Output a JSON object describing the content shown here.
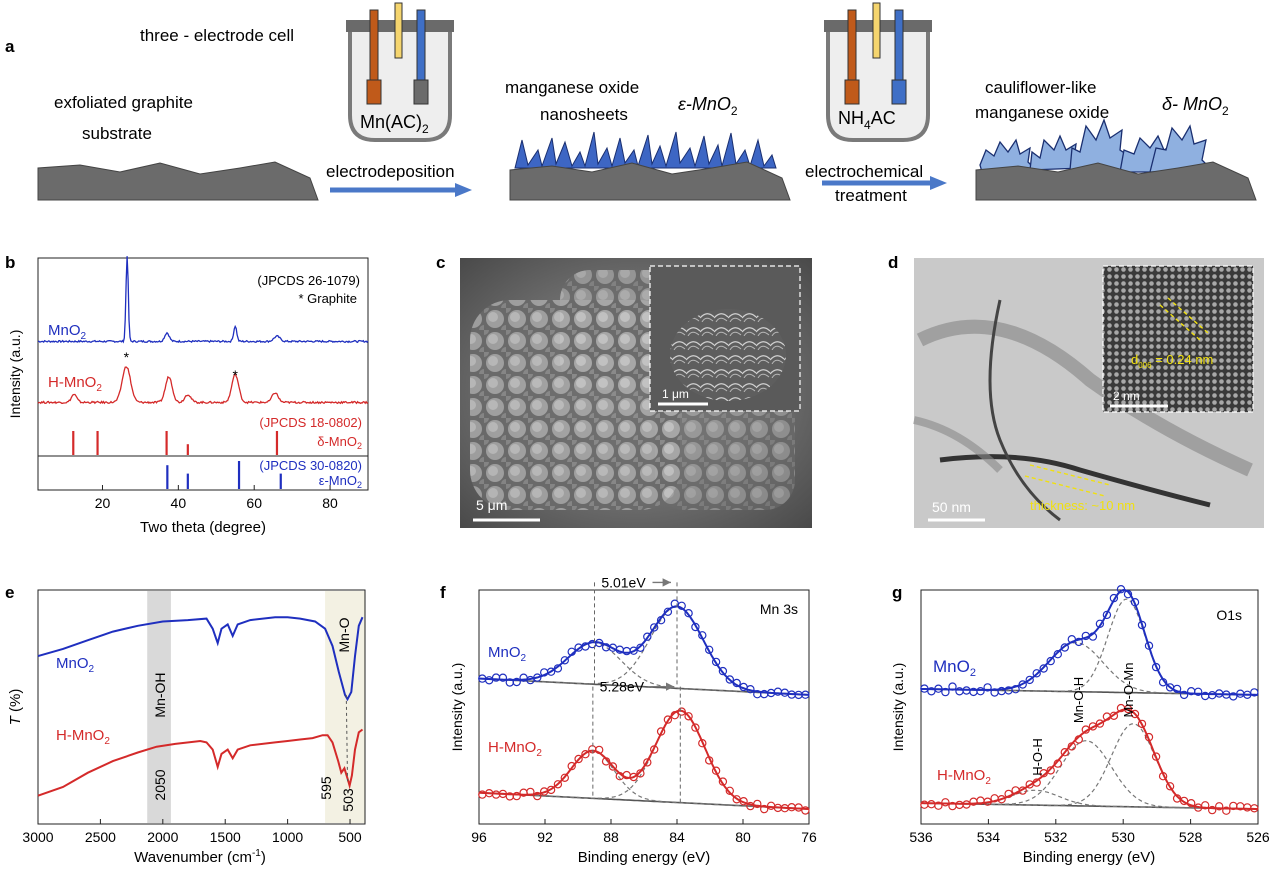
{
  "panel_labels": {
    "a": "a",
    "b": "b",
    "c": "c",
    "d": "d",
    "e": "e",
    "f": "f",
    "g": "g"
  },
  "colors": {
    "blue": "#1f2fbf",
    "red": "#d42a2a",
    "gray_dark": "#555555",
    "arrow_blue": "#4a78c8",
    "substrate": "#6b6b6b"
  },
  "schematic": {
    "cell_label": "three - electrode cell",
    "electrolyte_1": "Mn(AC)",
    "electrolyte_1_sub": "2",
    "electrolyte_2_pre": "NH",
    "electrolyte_2_sub": "4",
    "electrolyte_2_post": "AC",
    "substrate_line1": "exfoliated graphite",
    "substrate_line2": "substrate",
    "step1": "electrodeposition",
    "nanosheets_line1": "manganese oxide",
    "nanosheets_line2": "nanosheets",
    "phase_eps": "ε-MnO",
    "phase_sub": "2",
    "step2_line1": "electrochemical",
    "step2_line2": "treatment",
    "cauli_line1": "cauliflower-like",
    "cauli_line2": "manganese oxide",
    "phase_delta": "δ- MnO"
  },
  "chart_data": [
    {
      "panel": "b",
      "type": "line",
      "title": "",
      "xlabel": "Two theta  (degree)",
      "ylabel": "Intensity (a.u.)",
      "xlim": [
        3,
        90
      ],
      "xticks": [
        20,
        40,
        60,
        80
      ],
      "annotation_top_1": "(JPCDS 26-1079)",
      "annotation_top_2": "* Graphite",
      "series": [
        {
          "name": "MnO2",
          "label": "MnO",
          "label_sub": "2",
          "color": "#1f2fbf",
          "baseline": 0.1,
          "noise": 0.01,
          "peaks": [
            [
              26.5,
              1.0,
              0.3
            ],
            [
              37.0,
              0.1,
              0.6
            ],
            [
              55.0,
              0.18,
              0.4
            ],
            [
              66.0,
              0.06,
              0.8
            ]
          ]
        },
        {
          "name": "H-MnO2",
          "label": "H-MnO",
          "label_sub": "2",
          "color": "#d42a2a",
          "baseline": 0.12,
          "noise": 0.012,
          "peaks": [
            [
              12.5,
              0.1,
              0.7
            ],
            [
              26.3,
              0.45,
              1.1
            ],
            [
              37.5,
              0.32,
              0.9
            ],
            [
              42.5,
              0.1,
              0.8
            ],
            [
              55.0,
              0.35,
              0.9
            ],
            [
              65.5,
              0.12,
              0.8
            ]
          ]
        }
      ],
      "star_positions": [
        26.3,
        55.0
      ],
      "ref_delta": {
        "label": "(JPCDS 18-0802)",
        "phase": "δ-MnO",
        "phase_sub": "2",
        "color": "#d42a2a",
        "lines": [
          [
            12.3,
            1.0
          ],
          [
            18.7,
            1.0
          ],
          [
            36.9,
            1.0
          ],
          [
            42.5,
            0.45
          ],
          [
            66.0,
            1.0
          ]
        ]
      },
      "ref_eps": {
        "label": "(JPCDS 30-0820)",
        "phase": "ε-MnO",
        "phase_sub": "2",
        "color": "#1f2fbf",
        "lines": [
          [
            37.1,
            0.85
          ],
          [
            42.5,
            0.55
          ],
          [
            56.0,
            1.0
          ],
          [
            67.0,
            0.55
          ]
        ]
      }
    },
    {
      "panel": "e",
      "type": "line",
      "xlabel": "Wavenumber (cm",
      "xlabel_sup": "-1",
      "xlabel_post": ")",
      "ylabel": "T",
      "ylabel_post": " (%)",
      "xlim": [
        3000,
        380
      ],
      "xticks": [
        3000,
        2500,
        2000,
        1500,
        1000,
        500
      ],
      "band_mnoh": {
        "from": 2125,
        "to": 1935,
        "label": "Mn-OH",
        "value_label": "2050"
      },
      "band_mno": {
        "from": 700,
        "to": 380,
        "label": "Mn-O"
      },
      "marker_595": "595",
      "marker_503": "503",
      "series": [
        {
          "name": "MnO2",
          "label": "MnO",
          "label_sub": "2",
          "color": "#1f2fbf",
          "points": [
            [
              3000,
              0.55
            ],
            [
              2800,
              0.6
            ],
            [
              2600,
              0.66
            ],
            [
              2400,
              0.72
            ],
            [
              2200,
              0.76
            ],
            [
              2000,
              0.79
            ],
            [
              1800,
              0.8
            ],
            [
              1650,
              0.81
            ],
            [
              1600,
              0.74
            ],
            [
              1560,
              0.64
            ],
            [
              1530,
              0.74
            ],
            [
              1480,
              0.77
            ],
            [
              1440,
              0.69
            ],
            [
              1400,
              0.77
            ],
            [
              1300,
              0.8
            ],
            [
              1100,
              0.82
            ],
            [
              1000,
              0.82
            ],
            [
              900,
              0.81
            ],
            [
              780,
              0.79
            ],
            [
              700,
              0.74
            ],
            [
              640,
              0.62
            ],
            [
              590,
              0.44
            ],
            [
              540,
              0.28
            ],
            [
              520,
              0.25
            ],
            [
              490,
              0.3
            ],
            [
              460,
              0.55
            ],
            [
              430,
              0.76
            ],
            [
              400,
              0.82
            ]
          ]
        },
        {
          "name": "H-MnO2",
          "label": "H-MnO",
          "label_sub": "2",
          "color": "#d42a2a",
          "points": [
            [
              3000,
              -0.42
            ],
            [
              2800,
              -0.36
            ],
            [
              2600,
              -0.26
            ],
            [
              2400,
              -0.18
            ],
            [
              2200,
              -0.12
            ],
            [
              2050,
              -0.08
            ],
            [
              1900,
              -0.06
            ],
            [
              1700,
              -0.04
            ],
            [
              1650,
              -0.05
            ],
            [
              1600,
              -0.1
            ],
            [
              1560,
              -0.22
            ],
            [
              1530,
              -0.13
            ],
            [
              1480,
              -0.1
            ],
            [
              1440,
              -0.16
            ],
            [
              1400,
              -0.1
            ],
            [
              1300,
              -0.07
            ],
            [
              1100,
              -0.05
            ],
            [
              1000,
              -0.04
            ],
            [
              900,
              -0.03
            ],
            [
              800,
              -0.02
            ],
            [
              720,
              0.0
            ],
            [
              680,
              0.0
            ],
            [
              640,
              -0.05
            ],
            [
              595,
              -0.18
            ],
            [
              570,
              -0.26
            ],
            [
              545,
              -0.23
            ],
            [
              520,
              -0.3
            ],
            [
              503,
              -0.35
            ],
            [
              485,
              -0.28
            ],
            [
              460,
              -0.1
            ],
            [
              430,
              0.02
            ],
            [
              400,
              0.04
            ]
          ]
        }
      ]
    },
    {
      "panel": "f",
      "type": "scatter",
      "xlabel": "Binding energy (eV)",
      "ylabel": "Intensity (a.u.)",
      "corner_label": "Mn 3s",
      "xlim": [
        96,
        76
      ],
      "xticks": [
        96,
        92,
        88,
        84,
        80,
        76
      ],
      "series": [
        {
          "name": "MnO2",
          "label": "MnO",
          "label_sub": "2",
          "color": "#1f2fbf",
          "offset": 1.0,
          "bg_start": 0.13,
          "bg_end": 0.02,
          "peaks": [
            [
              89.0,
              0.28,
              1.6
            ],
            [
              84.0,
              0.55,
              1.6
            ]
          ],
          "split_label": "5.01eV",
          "split_from": 89.0,
          "split_to": 84.0
        },
        {
          "name": "H-MnO2",
          "label": "H-MnO",
          "label_sub": "2",
          "color": "#d42a2a",
          "offset": 0.0,
          "bg_start": 0.13,
          "bg_end": 0.02,
          "peaks": [
            [
              89.1,
              0.32,
              1.3
            ],
            [
              83.8,
              0.62,
              1.5
            ]
          ],
          "split_label": "5.28eV",
          "split_from": 89.1,
          "split_to": 83.8
        }
      ]
    },
    {
      "panel": "g",
      "type": "scatter",
      "xlabel": "Binding energy (eV)",
      "ylabel": "Intensity (a.u.)",
      "corner_label": "O1s",
      "xlim": [
        536,
        526
      ],
      "xticks": [
        536,
        534,
        532,
        530,
        528,
        526
      ],
      "label_mnoh": "Mn-O-H",
      "label_mnomn": "Mn-O-Mn",
      "label_hoh": "H-O-H",
      "series": [
        {
          "name": "MnO2",
          "label": "MnO",
          "label_sub": "2",
          "color": "#1f2fbf",
          "offset": 1.0,
          "bg_start": 0.06,
          "bg_end": 0.02,
          "peaks": [
            [
              531.4,
              0.33,
              0.8
            ],
            [
              529.9,
              0.63,
              0.55
            ]
          ]
        },
        {
          "name": "H-MnO2",
          "label": "H-MnO",
          "label_sub": "2",
          "color": "#d42a2a",
          "offset": 0.0,
          "bg_start": 0.06,
          "bg_end": 0.02,
          "peaks": [
            [
              532.6,
              0.1,
              0.7
            ],
            [
              531.1,
              0.44,
              0.75
            ],
            [
              529.7,
              0.56,
              0.65
            ]
          ]
        }
      ]
    }
  ],
  "sem": {
    "scale_main": "5 μm",
    "scale_inset": "1 μm"
  },
  "tem": {
    "scale_main": "50 nm",
    "scale_inset": "2 nm",
    "thickness_label": "thickness: ~10 nm",
    "d_label": "d",
    "d_sub": "006",
    "d_value": " = 0.24 nm"
  }
}
